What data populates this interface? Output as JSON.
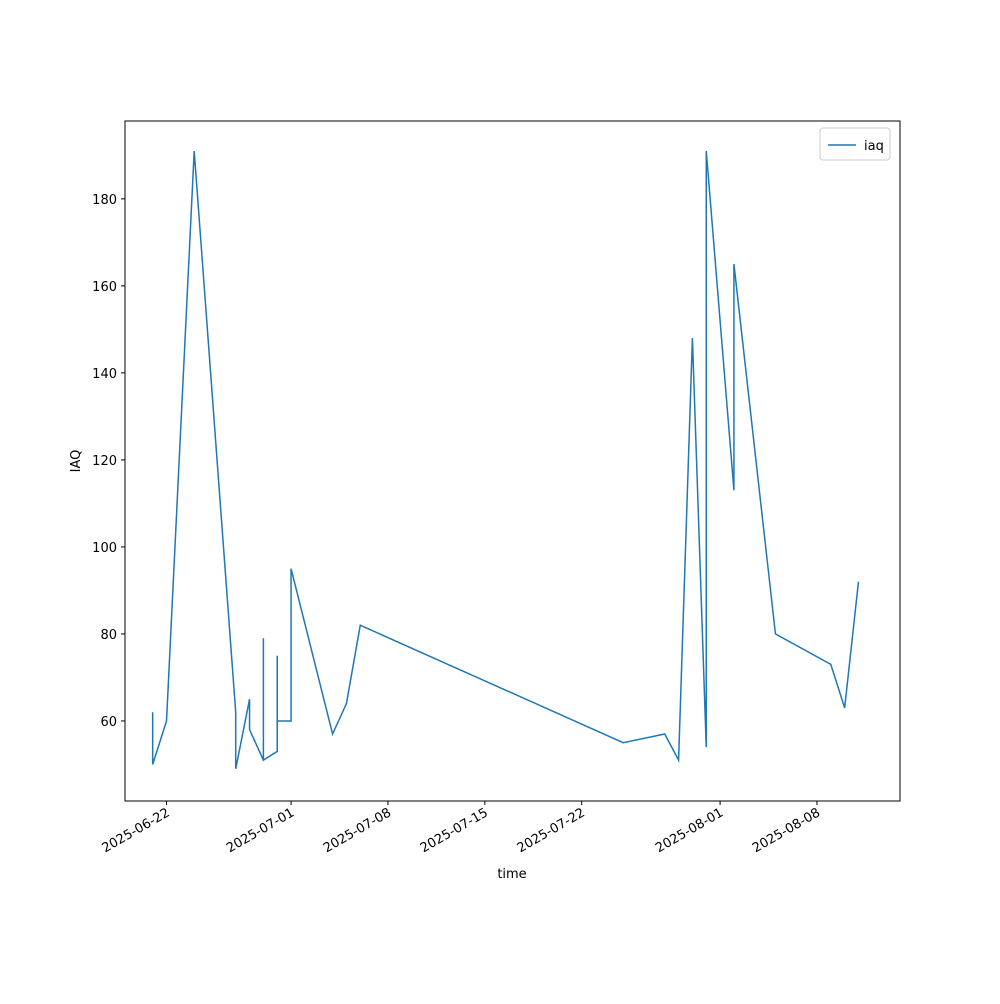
{
  "chart_data": {
    "type": "line",
    "x_label": "time",
    "y_label": "IAQ",
    "x": [
      "2025-06-21",
      "2025-06-21",
      "2025-06-22",
      "2025-06-24",
      "2025-06-27",
      "2025-06-27",
      "2025-06-28",
      "2025-06-28",
      "2025-06-29",
      "2025-06-29",
      "2025-06-29",
      "2025-06-30",
      "2025-06-30",
      "2025-06-30",
      "2025-06-30",
      "2025-06-30",
      "2025-07-01",
      "2025-07-01",
      "2025-07-04",
      "2025-07-05",
      "2025-07-06",
      "2025-07-25",
      "2025-07-28",
      "2025-07-29",
      "2025-07-30",
      "2025-07-31",
      "2025-07-31",
      "2025-08-02",
      "2025-08-02",
      "2025-08-05",
      "2025-08-09",
      "2025-08-10",
      "2025-08-11"
    ],
    "series": [
      {
        "name": "iaq",
        "color": "#1f77b4",
        "values": [
          62,
          50,
          60,
          191,
          62,
          49,
          65,
          58,
          51,
          79,
          51,
          53,
          75,
          66,
          55,
          60,
          60,
          95,
          57,
          64,
          82,
          55,
          57,
          51,
          148,
          54,
          191,
          113,
          165,
          80,
          73,
          63,
          92
        ]
      }
    ],
    "xlim": [
      "2025-06-19",
      "2025-08-14"
    ],
    "xticks": [
      "2025-06-22",
      "2025-07-01",
      "2025-07-08",
      "2025-07-15",
      "2025-07-22",
      "2025-08-01",
      "2025-08-08"
    ],
    "ylim": [
      41.6,
      197.9
    ],
    "yticks": [
      60,
      80,
      100,
      120,
      140,
      160,
      180
    ],
    "legend": "upper right"
  }
}
